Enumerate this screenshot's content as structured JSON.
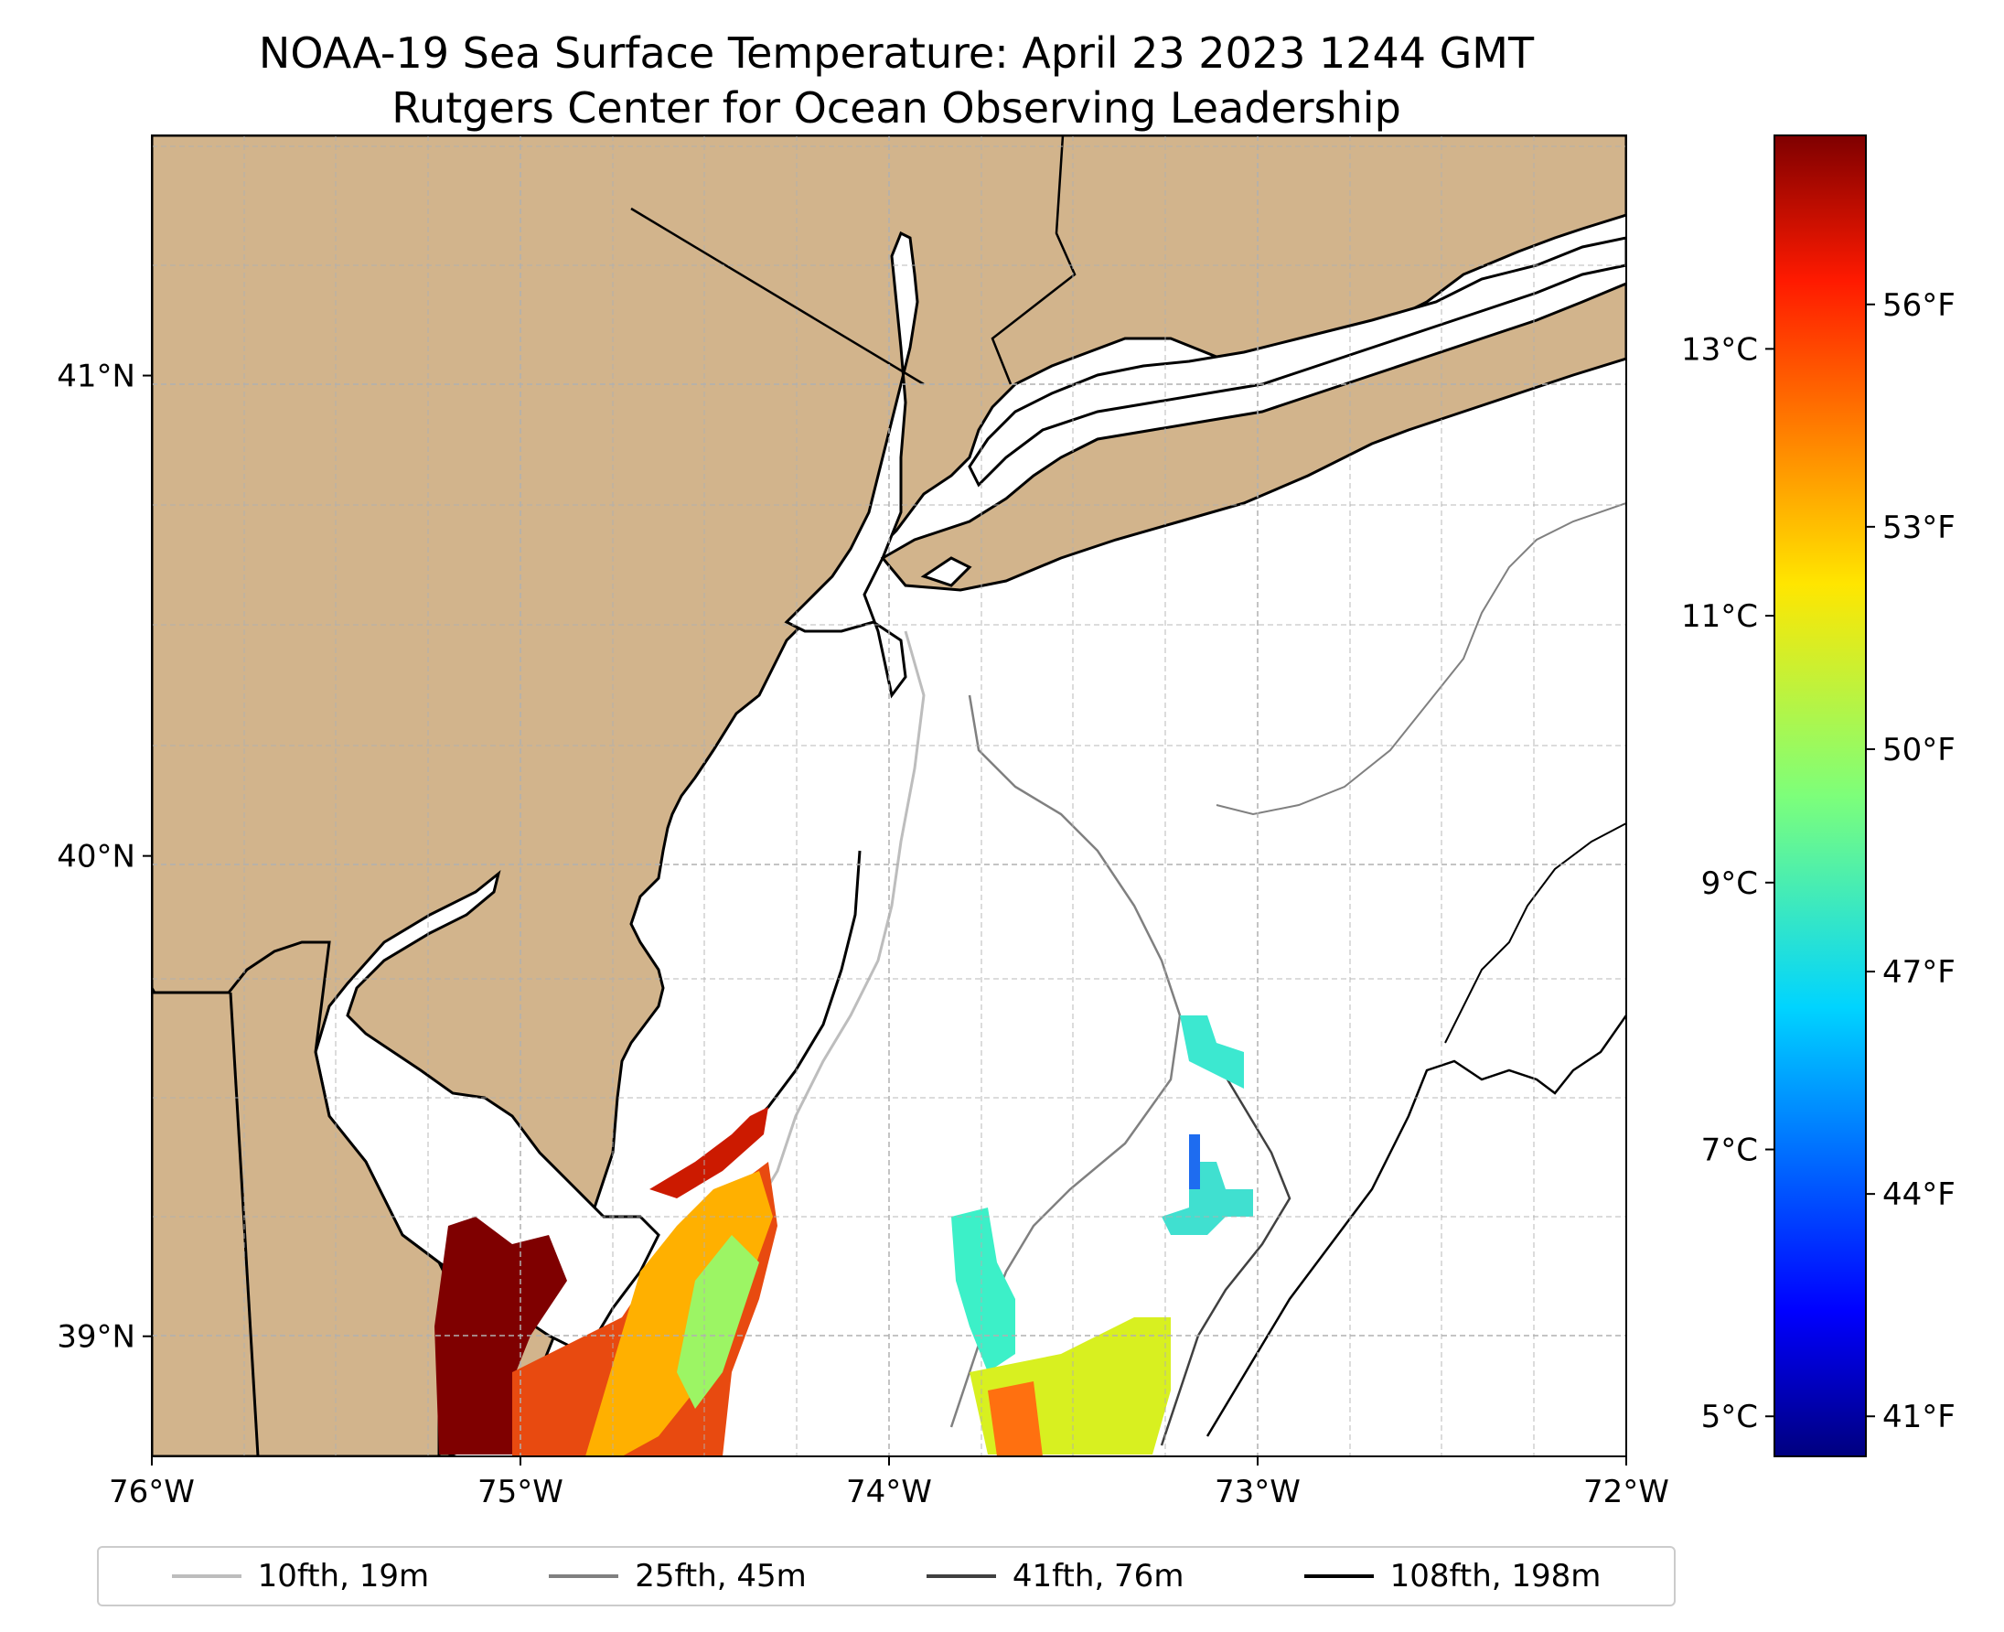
{
  "title": {
    "line1": "NOAA-19 Sea Surface Temperature: April 23 2023 1244 GMT",
    "line2": "Rutgers Center for Ocean Observing Leadership"
  },
  "axes": {
    "x_ticks": [
      {
        "value": -76,
        "label": "76°W"
      },
      {
        "value": -75,
        "label": "75°W"
      },
      {
        "value": -74,
        "label": "74°W"
      },
      {
        "value": -73,
        "label": "73°W"
      },
      {
        "value": -72,
        "label": "72°W"
      }
    ],
    "y_ticks": [
      {
        "value": 39,
        "label": "39°N"
      },
      {
        "value": 40,
        "label": "40°N"
      },
      {
        "value": 41,
        "label": "41°N"
      }
    ],
    "lon_range": [
      -76,
      -72
    ],
    "lat_range": [
      38.75,
      41.5
    ]
  },
  "colorbar": {
    "celsius_ticks": [
      {
        "value": 5,
        "label": "5°C"
      },
      {
        "value": 7,
        "label": "7°C"
      },
      {
        "value": 9,
        "label": "9°C"
      },
      {
        "value": 11,
        "label": "11°C"
      },
      {
        "value": 13,
        "label": "13°C"
      }
    ],
    "fahrenheit_ticks": [
      {
        "value": 41,
        "label": "41°F"
      },
      {
        "value": 44,
        "label": "44°F"
      },
      {
        "value": 47,
        "label": "47°F"
      },
      {
        "value": 50,
        "label": "50°F"
      },
      {
        "value": 53,
        "label": "53°F"
      },
      {
        "value": 56,
        "label": "56°F"
      }
    ],
    "range_c": [
      4.7,
      14.6
    ]
  },
  "legend": [
    {
      "label": "10fth, 19m",
      "color": "#bdbdbd"
    },
    {
      "label": "25fth, 45m",
      "color": "#808080"
    },
    {
      "label": "41fth, 76m",
      "color": "#404040"
    },
    {
      "label": "108fth, 198m",
      "color": "#000000"
    }
  ],
  "colors": {
    "land": "#d2b48c",
    "water": "#ffffff",
    "coast": "#000000",
    "grid": "#b0b0b0"
  }
}
